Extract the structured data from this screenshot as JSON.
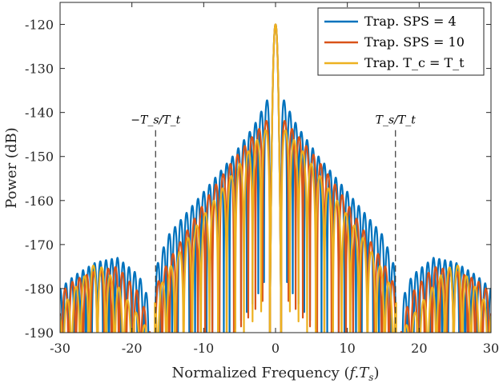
{
  "chart_data": {
    "type": "line",
    "title": "",
    "xlabel": "Normalized Frequency (f.T_s)",
    "ylabel": "Power (dB)",
    "xlim": [
      -30,
      30
    ],
    "ylim": [
      -190,
      -115
    ],
    "xticks": [
      -30,
      -20,
      -10,
      0,
      10,
      20,
      30
    ],
    "yticks": [
      -190,
      -180,
      -170,
      -160,
      -150,
      -140,
      -130,
      -120
    ],
    "xtick_labels": [
      "-30",
      "-20",
      "-10",
      "0",
      "10",
      "20",
      "30"
    ],
    "ytick_labels": [
      "-190",
      "-180",
      "-170",
      "-160",
      "-150",
      "-140",
      "-130",
      "-120"
    ],
    "grid": false,
    "legend_position": "top-right",
    "series": [
      {
        "name": "Trap. SPS = 4",
        "color": "#0072BD",
        "peak": -120,
        "inner_envelope": [
          [
            0.8,
            -136
          ],
          [
            3,
            -143
          ],
          [
            6,
            -150
          ],
          [
            9,
            -156
          ],
          [
            12,
            -162
          ],
          [
            15,
            -168
          ],
          [
            16.8,
            -176
          ]
        ],
        "outer_envelope": [
          [
            17.5,
            -183
          ],
          [
            19,
            -177
          ],
          [
            22,
            -173
          ],
          [
            25,
            -174
          ],
          [
            28,
            -177
          ],
          [
            30,
            -180
          ]
        ],
        "lobe_spacing": 0.8
      },
      {
        "name": "Trap. SPS = 10",
        "color": "#D95319",
        "peak": -120,
        "inner_envelope": [
          [
            0.8,
            -141
          ],
          [
            3,
            -145
          ],
          [
            6,
            -151
          ],
          [
            9,
            -158
          ],
          [
            12,
            -166
          ],
          [
            15,
            -174
          ],
          [
            16.8,
            -180
          ]
        ],
        "outer_envelope": [
          [
            17.5,
            -188
          ],
          [
            19,
            -181
          ],
          [
            22,
            -175
          ],
          [
            25,
            -176
          ],
          [
            28,
            -178
          ],
          [
            30,
            -181
          ]
        ],
        "lobe_spacing": 1.0
      },
      {
        "name": "Trap. T_c = T_t",
        "color": "#EDB120",
        "peak": -120,
        "inner_envelope": [
          [
            0.8,
            -143
          ],
          [
            3,
            -147
          ],
          [
            6,
            -154
          ],
          [
            9,
            -161
          ],
          [
            12,
            -168
          ],
          [
            15,
            -176
          ],
          [
            16.8,
            -182
          ]
        ],
        "outer_envelope": [
          [
            17.5,
            -190
          ],
          [
            20,
            -184
          ],
          [
            23,
            -177
          ],
          [
            25,
            -174
          ],
          [
            28,
            -180
          ],
          [
            30,
            -185
          ]
        ],
        "lobe_spacing": 1.2
      }
    ],
    "vlines": [
      {
        "x": -16.7,
        "label": "−T_s/T_t"
      },
      {
        "x": 16.7,
        "label": "T_s/T_t"
      }
    ]
  }
}
